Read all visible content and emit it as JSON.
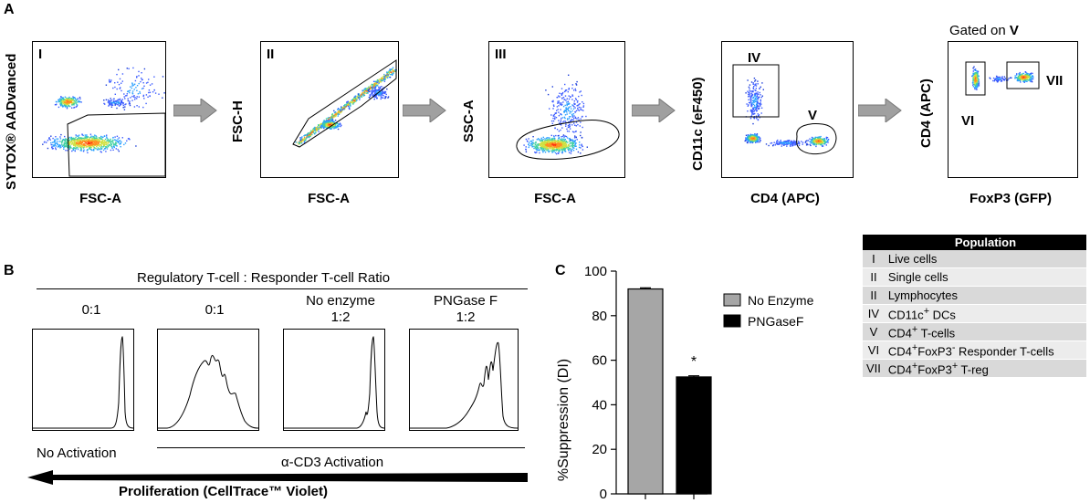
{
  "panel_a": {
    "letter": "A",
    "plots": [
      {
        "id": "I",
        "ylabel": "SYTOX® AADvanced",
        "xlabel": "FSC-A",
        "gate": "I"
      },
      {
        "id": "II",
        "ylabel": "FSC-H",
        "xlabel": "FSC-A",
        "gate": "II"
      },
      {
        "id": "III",
        "ylabel": "SSC-A",
        "xlabel": "FSC-A",
        "gate": "III"
      },
      {
        "id": "IV",
        "ylabel": "CD11c (eF450)",
        "xlabel": "CD4 (APC)",
        "gate": "IV",
        "gate2": "V"
      },
      {
        "id": "V",
        "ylabel": "CD4 (APC)",
        "xlabel": "FoxP3 (GFP)",
        "gate": "VI",
        "gate2": "VII",
        "header_prefix": "Gated on ",
        "header_bold": "V"
      }
    ]
  },
  "population_table": {
    "header": "Population",
    "rows": [
      {
        "num": "I",
        "label": "Live cells",
        "sup": "",
        "rest": ""
      },
      {
        "num": "II",
        "label": "Single cells",
        "sup": "",
        "rest": ""
      },
      {
        "num": "II",
        "label": "Lymphocytes",
        "sup": "",
        "rest": ""
      },
      {
        "num": "IV",
        "label": "CD11c",
        "sup": "+",
        "rest": " DCs"
      },
      {
        "num": "V",
        "label": "CD4",
        "sup": "+",
        "rest": " T-cells"
      },
      {
        "num": "VI",
        "label": "CD4",
        "sup": "+",
        "rest": "FoxP3",
        "sup2": "-",
        "rest2": " Responder T-cells"
      },
      {
        "num": "VII",
        "label": "CD4",
        "sup": "+",
        "rest": "FoxP3",
        "sup2": "+",
        "rest2": " T-reg"
      }
    ]
  },
  "panel_b": {
    "letter": "B",
    "header": "Regulatory T-cell : Responder T-cell Ratio",
    "histograms": [
      {
        "line1": "",
        "line2": "0:1"
      },
      {
        "line1": "",
        "line2": "0:1"
      },
      {
        "line1": "No enzyme",
        "line2": "1:2"
      },
      {
        "line1": "PNGase F",
        "line2": "1:2"
      }
    ],
    "no_activation": "No Activation",
    "cd3_activation": "α-CD3 Activation",
    "proliferation": "Proliferation (CellTrace™ Violet)"
  },
  "chart_data": {
    "type": "bar",
    "panel_letter": "C",
    "categories": [
      "No Enzyme",
      "PNGaseF"
    ],
    "values": [
      92,
      52.5
    ],
    "errors": [
      0.5,
      0.5
    ],
    "colors": [
      "#a6a6a6",
      "#000000"
    ],
    "legend": [
      "No Enzyme",
      "PNGaseF"
    ],
    "ylabel": "%Suppression (DI)",
    "ylim": [
      0,
      100
    ],
    "yticks": [
      "0",
      "20",
      "40",
      "60",
      "80",
      "100"
    ],
    "annotation": "*"
  }
}
